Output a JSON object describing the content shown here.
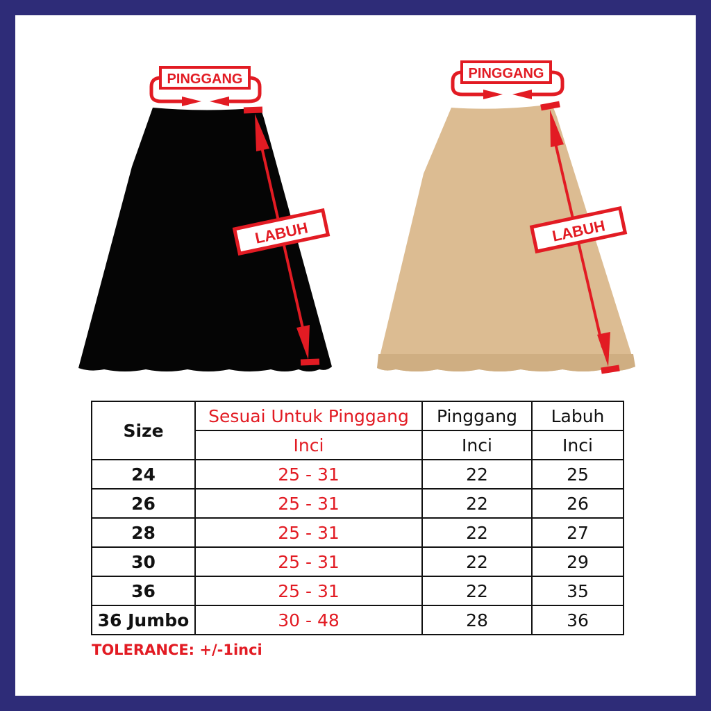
{
  "labels": {
    "waist": "PINGGANG",
    "length": "LABUH"
  },
  "colors": {
    "frame": "#2e2c78",
    "accent": "#e21b23",
    "skirt_black": "#050505",
    "skirt_beige": "#dcbc92"
  },
  "table": {
    "headers": {
      "size": "Size",
      "fit": "Sesuai Untuk Pinggang",
      "waist": "Pinggang",
      "length": "Labuh"
    },
    "units": {
      "fit": "Inci",
      "waist": "Inci",
      "length": "Inci"
    },
    "rows": [
      {
        "size": "24",
        "fit": "25 - 31",
        "waist": "22",
        "length": "25"
      },
      {
        "size": "26",
        "fit": "25 - 31",
        "waist": "22",
        "length": "26"
      },
      {
        "size": "28",
        "fit": "25 - 31",
        "waist": "22",
        "length": "27"
      },
      {
        "size": "30",
        "fit": "25 - 31",
        "waist": "22",
        "length": "29"
      },
      {
        "size": "36",
        "fit": "25 - 31",
        "waist": "22",
        "length": "35"
      },
      {
        "size": "36 Jumbo",
        "fit": "30 - 48",
        "waist": "28",
        "length": "36"
      }
    ]
  },
  "tolerance": "TOLERANCE: +/-1inci"
}
